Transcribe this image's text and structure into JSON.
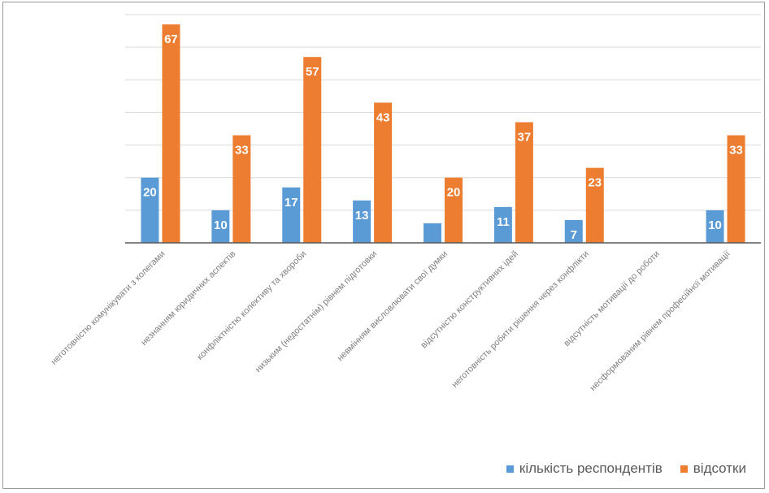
{
  "chart_data": {
    "type": "bar",
    "title": "",
    "xlabel": "",
    "ylabel": "",
    "ylim": [
      0,
      70
    ],
    "grid": true,
    "legend_position": "bottom-right",
    "categories": [
      "неготовністю комунікувати з колегами",
      "незнанням юридичних аспектів",
      "конфліктністю колективу та хвороби",
      "низьким (недостатнім) рівнем підготовки",
      "невмінням висловлювати свої думки",
      "відсутністю конструктивних ідей",
      "неготовність робити рішення через конфлікти",
      "відсутність мотивації до роботи",
      "несформованим рівнем професійної мотивації"
    ],
    "series": [
      {
        "name": "кількість респондентів",
        "color": "#5b9bd5",
        "values": [
          20,
          10,
          17,
          13,
          6,
          11,
          7,
          null,
          10
        ],
        "labels": [
          "20",
          "10",
          "17",
          "13",
          "",
          "11",
          "7",
          "",
          "10"
        ]
      },
      {
        "name": "відсотки",
        "color": "#ed7d31",
        "values": [
          67,
          33,
          57,
          43,
          20,
          37,
          23,
          null,
          33
        ],
        "labels": [
          "67",
          "33",
          "57",
          "43",
          "20",
          "37",
          "23",
          "",
          "33"
        ]
      }
    ]
  }
}
